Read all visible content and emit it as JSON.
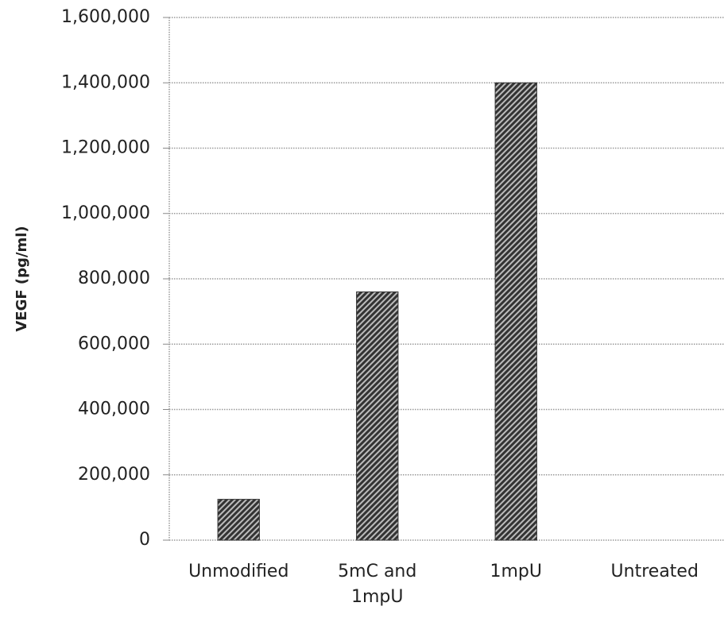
{
  "chart_data": {
    "type": "bar",
    "y_label": "VEGF (pg/ml)",
    "categories": [
      "Unmodified",
      "5mC and 1mpU",
      "1mpU",
      "Untreated"
    ],
    "values": [
      125000,
      760000,
      1400000,
      0
    ],
    "color": "#333333",
    "ylim": [
      0,
      1600000
    ],
    "yticks": [
      0,
      {
        "value": 200000,
        "label": "200,000"
      },
      {
        "value": 400000,
        "label": "400,000"
      },
      {
        "value": 600000,
        "label": "600,000"
      },
      {
        "value": 800000,
        "label": "800,000"
      },
      {
        "value": 1000000,
        "label": "1,000,000"
      },
      {
        "value": 1200000,
        "label": "1,200,000"
      },
      {
        "value": 1400000,
        "label": "1,400,000"
      },
      {
        "value": 1600000,
        "label": "1,600,000"
      }
    ],
    "grid": true
  }
}
